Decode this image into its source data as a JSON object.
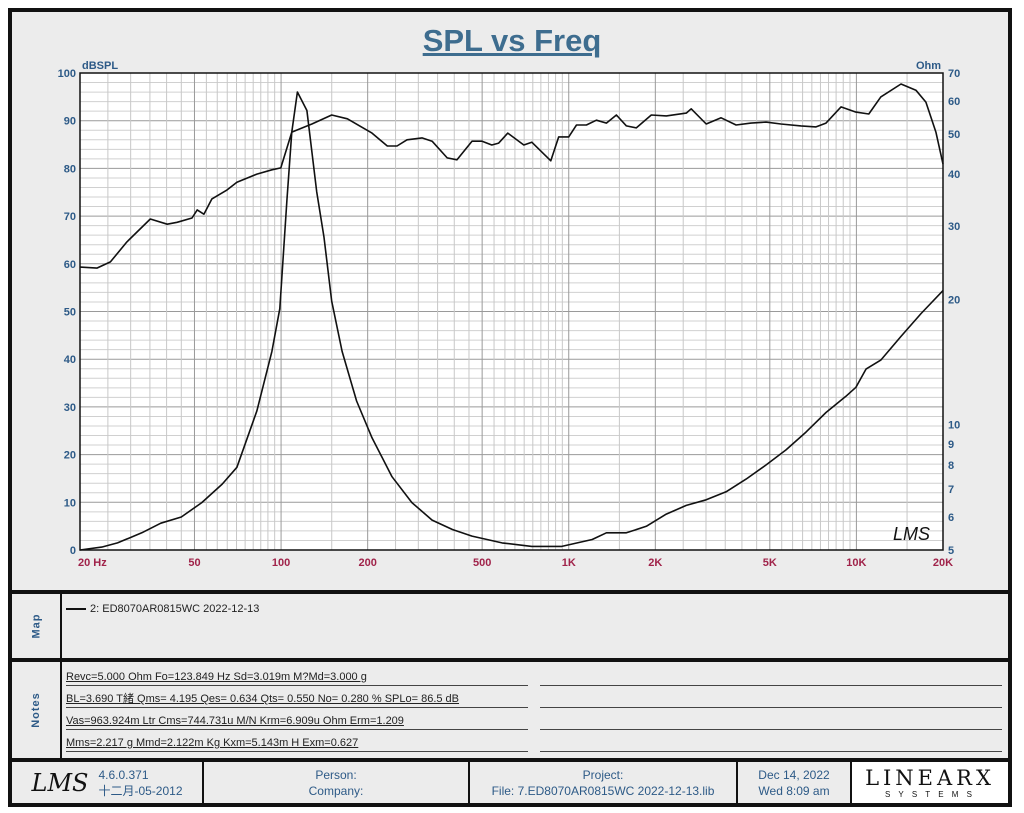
{
  "chart_data": {
    "type": "line",
    "title": "SPL vs Freq",
    "ylabel_left": "dBSPL",
    "ylabel_right": "Ohm",
    "x_scale": "log",
    "xlim": [
      20,
      20000
    ],
    "ylim_left": [
      0,
      100
    ],
    "ylim_right": [
      5,
      70
    ],
    "y_right_scale": "log",
    "grid": true,
    "x_ticks": [
      {
        "v": 20,
        "label": "20  Hz"
      },
      {
        "v": 50,
        "label": "50"
      },
      {
        "v": 100,
        "label": "100"
      },
      {
        "v": 200,
        "label": "200"
      },
      {
        "v": 500,
        "label": "500"
      },
      {
        "v": 1000,
        "label": "1K"
      },
      {
        "v": 2000,
        "label": "2K"
      },
      {
        "v": 5000,
        "label": "5K"
      },
      {
        "v": 10000,
        "label": "10K"
      },
      {
        "v": 20000,
        "label": "20K"
      }
    ],
    "y_left_ticks": [
      0,
      10,
      20,
      30,
      40,
      50,
      60,
      70,
      80,
      90,
      100
    ],
    "y_right_ticks": [
      5,
      6,
      7,
      8,
      9,
      10,
      20,
      30,
      40,
      50,
      60,
      70
    ],
    "series": [
      {
        "axis": "left",
        "color": "#111111",
        "x": [
          20,
          22.9,
          25.5,
          29.1,
          35.1,
          40.2,
          43.5,
          49,
          51.1,
          53.9,
          57.5,
          64.9,
          70.2,
          82.4,
          92.9,
          99.8,
          109,
          128,
          150,
          170,
          207,
          234,
          253,
          274,
          309,
          335,
          378,
          409,
          461,
          500,
          540,
          571,
          614,
          698,
          744,
          866,
          923,
          1000,
          1064,
          1152,
          1248,
          1352,
          1464,
          1586,
          1718,
          1937,
          2183,
          2562,
          2666,
          3005,
          3387,
          3818,
          4302,
          4849,
          5466,
          6420,
          7235,
          7840,
          8840,
          9960,
          11040,
          12160,
          14290,
          16100,
          17440,
          18900,
          20000
        ],
        "y": [
          59.3,
          59.1,
          60.4,
          64.6,
          69.4,
          68.3,
          68.7,
          69.6,
          71.3,
          70.4,
          73.6,
          75.5,
          77.1,
          78.8,
          79.7,
          80.1,
          87.6,
          89.3,
          91.2,
          90.4,
          87.4,
          84.7,
          84.7,
          86,
          86.4,
          85.7,
          82.2,
          81.8,
          85.7,
          85.7,
          84.9,
          85.3,
          87.4,
          84.9,
          85.5,
          81.6,
          86.6,
          86.6,
          89.1,
          89.1,
          90.1,
          89.5,
          91.2,
          88.9,
          88.5,
          91.2,
          91,
          91.6,
          92.5,
          89.3,
          90.6,
          89.1,
          89.5,
          89.7,
          89.3,
          88.9,
          88.7,
          89.5,
          92.9,
          91.8,
          91.4,
          95,
          97.7,
          96.4,
          93.9,
          87.6,
          80.9
        ]
      },
      {
        "axis": "right",
        "color": "#111111",
        "x": [
          20,
          23.8,
          27,
          32.8,
          38.2,
          45,
          53,
          62.4,
          70.2,
          82.4,
          92.9,
          99,
          104.8,
          109,
          114,
          123,
          133,
          141,
          150,
          163,
          183,
          207,
          243,
          285,
          335,
          394,
          461,
          586,
          744,
          946,
          1207,
          1352,
          1586,
          1861,
          2183,
          2562,
          3005,
          3525,
          4137,
          4849,
          5690,
          6680,
          7840,
          9190,
          9960,
          10800,
          12160,
          14290,
          16780,
          20000
        ],
        "y": [
          5.0,
          5.08,
          5.2,
          5.5,
          5.8,
          6.0,
          6.5,
          7.2,
          7.9,
          10.8,
          15,
          19,
          34.6,
          50.5,
          63,
          56.9,
          36.3,
          28.2,
          19.8,
          15,
          11.4,
          9.3,
          7.5,
          6.5,
          5.9,
          5.6,
          5.4,
          5.2,
          5.1,
          5.1,
          5.3,
          5.5,
          5.5,
          5.7,
          6.1,
          6.4,
          6.6,
          6.9,
          7.4,
          8.0,
          8.7,
          9.6,
          10.7,
          11.7,
          12.3,
          13.6,
          14.3,
          16.3,
          18.5,
          21.0
        ]
      }
    ],
    "watermark": "LMS"
  },
  "map": {
    "label": "Map",
    "legend": "2: ED8070AR0815WC 2022-12-13"
  },
  "notes": {
    "label": "Notes",
    "lines": [
      "Revc=5.000 Ohm  Fo=123.849 Hz  Sd=3.019m M?Md=3.000 g",
      "BL=3.690 T緒  Qms= 4.195  Qes= 0.634  Qts= 0.550  No= 0.280 %  SPLo= 86.5 dB",
      "Vas=963.924m Ltr  Cms=744.731u M/N  Krm=6.909u Ohm  Erm=1.209",
      "Mms=2.217 g  Mmd=2.122m Kg  Kxm=5.143m H  Exm=0.627"
    ]
  },
  "footer": {
    "logo": "LMS",
    "version": "4.6.0.371",
    "build_date": "十二月-05-2012",
    "person": "Person:",
    "company": "Company:",
    "project": "Project:",
    "file": "File: 7.ED8070AR0815WC 2022-12-13.lib",
    "date": "Dec 14, 2022",
    "time": "Wed  8:09 am",
    "brand": "LINEARX",
    "brand_sub": "S Y S T E M S"
  },
  "colors": {
    "axis_left": "#2d5a87",
    "axis_x": "#a0234a",
    "title": "#3e6d8f"
  }
}
